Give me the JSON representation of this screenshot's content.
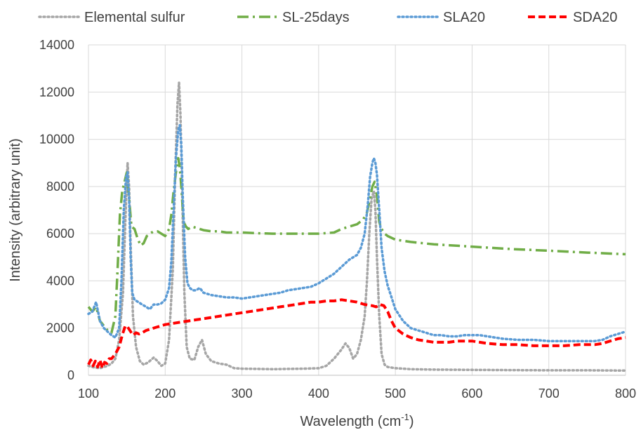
{
  "chart_data": {
    "type": "line",
    "title": "",
    "xlabel": "Wavelength (cm",
    "xlabel_sup": "-1",
    "xlabel_end": ")",
    "ylabel": "Intensity (arbitrary unit)",
    "xlim": [
      100,
      800
    ],
    "ylim": [
      0,
      14000
    ],
    "xticks": [
      100,
      200,
      300,
      400,
      500,
      600,
      700,
      800
    ],
    "yticks": [
      0,
      2000,
      4000,
      6000,
      8000,
      10000,
      12000,
      14000
    ],
    "grid": true,
    "legend_position": "top",
    "series": [
      {
        "name": "Elemental sulfur",
        "color": "#a6a6a6",
        "dash": "dotted",
        "x": [
          100,
          105,
          110,
          115,
          120,
          125,
          130,
          135,
          140,
          145,
          148,
          151,
          153,
          155,
          158,
          162,
          167,
          172,
          178,
          185,
          190,
          195,
          200,
          205,
          210,
          213,
          216,
          218,
          220,
          222,
          225,
          228,
          232,
          238,
          243,
          248,
          253,
          260,
          270,
          280,
          290,
          300,
          320,
          340,
          360,
          380,
          400,
          410,
          420,
          430,
          435,
          440,
          445,
          450,
          455,
          460,
          463,
          466,
          469,
          472,
          474,
          476,
          479,
          482,
          486,
          490,
          500,
          520,
          550,
          600,
          650,
          700,
          750,
          800
        ],
        "y": [
          400,
          350,
          320,
          300,
          350,
          400,
          500,
          700,
          1500,
          3500,
          6500,
          9000,
          8000,
          5500,
          2500,
          1200,
          600,
          450,
          550,
          750,
          600,
          400,
          500,
          1500,
          4500,
          8500,
          11500,
          12400,
          11000,
          8000,
          3500,
          1200,
          700,
          650,
          1200,
          1500,
          900,
          600,
          500,
          450,
          300,
          280,
          270,
          260,
          270,
          280,
          300,
          400,
          700,
          1100,
          1350,
          1150,
          700,
          900,
          1500,
          2500,
          4000,
          6000,
          7500,
          7800,
          7000,
          5000,
          2500,
          900,
          450,
          350,
          300,
          260,
          240,
          230,
          220,
          210,
          210,
          200
        ]
      },
      {
        "name": "SL-25days",
        "color": "#70ad47",
        "dash": "dashdot",
        "x": [
          100,
          105,
          110,
          115,
          120,
          125,
          130,
          135,
          138,
          141,
          144,
          147,
          150,
          153,
          156,
          160,
          164,
          168,
          172,
          176,
          180,
          185,
          190,
          195,
          200,
          205,
          208,
          211,
          214,
          217,
          219,
          221,
          224,
          227,
          230,
          235,
          240,
          245,
          250,
          260,
          270,
          280,
          290,
          300,
          320,
          340,
          360,
          380,
          400,
          420,
          430,
          440,
          450,
          458,
          463,
          467,
          470,
          473,
          476,
          479,
          482,
          486,
          490,
          500,
          520,
          550,
          600,
          650,
          700,
          750,
          800
        ],
        "y": [
          2900,
          2700,
          2900,
          2300,
          2100,
          1900,
          1800,
          2500,
          4500,
          6800,
          7800,
          8200,
          8600,
          7500,
          6300,
          6200,
          5800,
          5500,
          5600,
          5900,
          6000,
          6100,
          6100,
          6000,
          5900,
          6200,
          6800,
          7800,
          8600,
          9200,
          8800,
          8000,
          6500,
          6300,
          6200,
          6300,
          6250,
          6200,
          6150,
          6100,
          6100,
          6050,
          6050,
          6050,
          6020,
          6000,
          6000,
          6000,
          6000,
          6050,
          6200,
          6300,
          6400,
          6600,
          6900,
          7500,
          8000,
          8200,
          7600,
          6500,
          6200,
          6000,
          5900,
          5750,
          5650,
          5550,
          5450,
          5350,
          5280,
          5200,
          5130
        ]
      },
      {
        "name": "SLA20",
        "color": "#5b9bd5",
        "dash": "dotted",
        "x": [
          100,
          105,
          110,
          115,
          120,
          125,
          130,
          135,
          140,
          143,
          146,
          149,
          151,
          153,
          155,
          157,
          160,
          165,
          170,
          175,
          180,
          185,
          190,
          195,
          200,
          205,
          208,
          211,
          214,
          217,
          219,
          221,
          223,
          226,
          229,
          232,
          236,
          240,
          245,
          250,
          260,
          270,
          280,
          290,
          300,
          310,
          320,
          330,
          340,
          350,
          360,
          370,
          380,
          390,
          400,
          410,
          420,
          430,
          440,
          450,
          455,
          460,
          464,
          467,
          470,
          472,
          474,
          476,
          479,
          482,
          486,
          490,
          495,
          500,
          510,
          520,
          530,
          540,
          550,
          560,
          570,
          580,
          590,
          600,
          610,
          620,
          640,
          660,
          680,
          700,
          720,
          740,
          760,
          770,
          780,
          790,
          800
        ],
        "y": [
          2600,
          2700,
          3100,
          2300,
          2000,
          1850,
          1700,
          1600,
          2000,
          4000,
          7000,
          8400,
          8600,
          7500,
          5000,
          3500,
          3200,
          3100,
          3000,
          2900,
          2800,
          3000,
          3000,
          3050,
          3200,
          3700,
          4800,
          7000,
          9200,
          10400,
          10600,
          9800,
          7500,
          5000,
          3900,
          3700,
          3600,
          3600,
          3700,
          3500,
          3400,
          3350,
          3300,
          3300,
          3250,
          3300,
          3350,
          3400,
          3450,
          3500,
          3600,
          3650,
          3700,
          3750,
          3900,
          4100,
          4300,
          4600,
          4900,
          5100,
          5400,
          6000,
          7200,
          8400,
          9000,
          9200,
          9000,
          8500,
          7000,
          5400,
          4400,
          3800,
          3300,
          2800,
          2300,
          2000,
          1900,
          1800,
          1700,
          1700,
          1650,
          1650,
          1700,
          1700,
          1700,
          1650,
          1550,
          1500,
          1500,
          1450,
          1450,
          1450,
          1450,
          1500,
          1650,
          1750,
          1850
        ]
      },
      {
        "name": "SDA20",
        "color": "#ff0000",
        "dash": "dashed",
        "x": [
          100,
          103,
          106,
          109,
          112,
          115,
          118,
          121,
          124,
          127,
          130,
          135,
          140,
          144,
          148,
          151,
          154,
          158,
          162,
          166,
          170,
          175,
          180,
          190,
          200,
          210,
          220,
          230,
          240,
          250,
          260,
          270,
          280,
          290,
          300,
          310,
          320,
          330,
          340,
          350,
          360,
          370,
          380,
          390,
          400,
          410,
          420,
          430,
          440,
          450,
          460,
          470,
          475,
          480,
          485,
          490,
          495,
          500,
          510,
          520,
          530,
          540,
          550,
          560,
          570,
          580,
          590,
          600,
          610,
          620,
          640,
          660,
          680,
          700,
          720,
          740,
          760,
          770,
          780,
          790,
          800
        ],
        "y": [
          450,
          650,
          400,
          600,
          350,
          650,
          300,
          550,
          500,
          700,
          700,
          900,
          1200,
          1700,
          2100,
          2050,
          1900,
          1700,
          1800,
          1750,
          1800,
          1900,
          1950,
          2050,
          2150,
          2200,
          2250,
          2300,
          2350,
          2400,
          2450,
          2500,
          2550,
          2600,
          2650,
          2700,
          2750,
          2800,
          2850,
          2900,
          2950,
          3000,
          3050,
          3100,
          3100,
          3150,
          3150,
          3200,
          3150,
          3100,
          3000,
          2950,
          2900,
          3000,
          2950,
          2700,
          2300,
          2000,
          1750,
          1600,
          1500,
          1450,
          1400,
          1400,
          1400,
          1450,
          1450,
          1450,
          1400,
          1350,
          1300,
          1300,
          1250,
          1250,
          1250,
          1300,
          1300,
          1350,
          1450,
          1550,
          1600
        ]
      }
    ]
  }
}
